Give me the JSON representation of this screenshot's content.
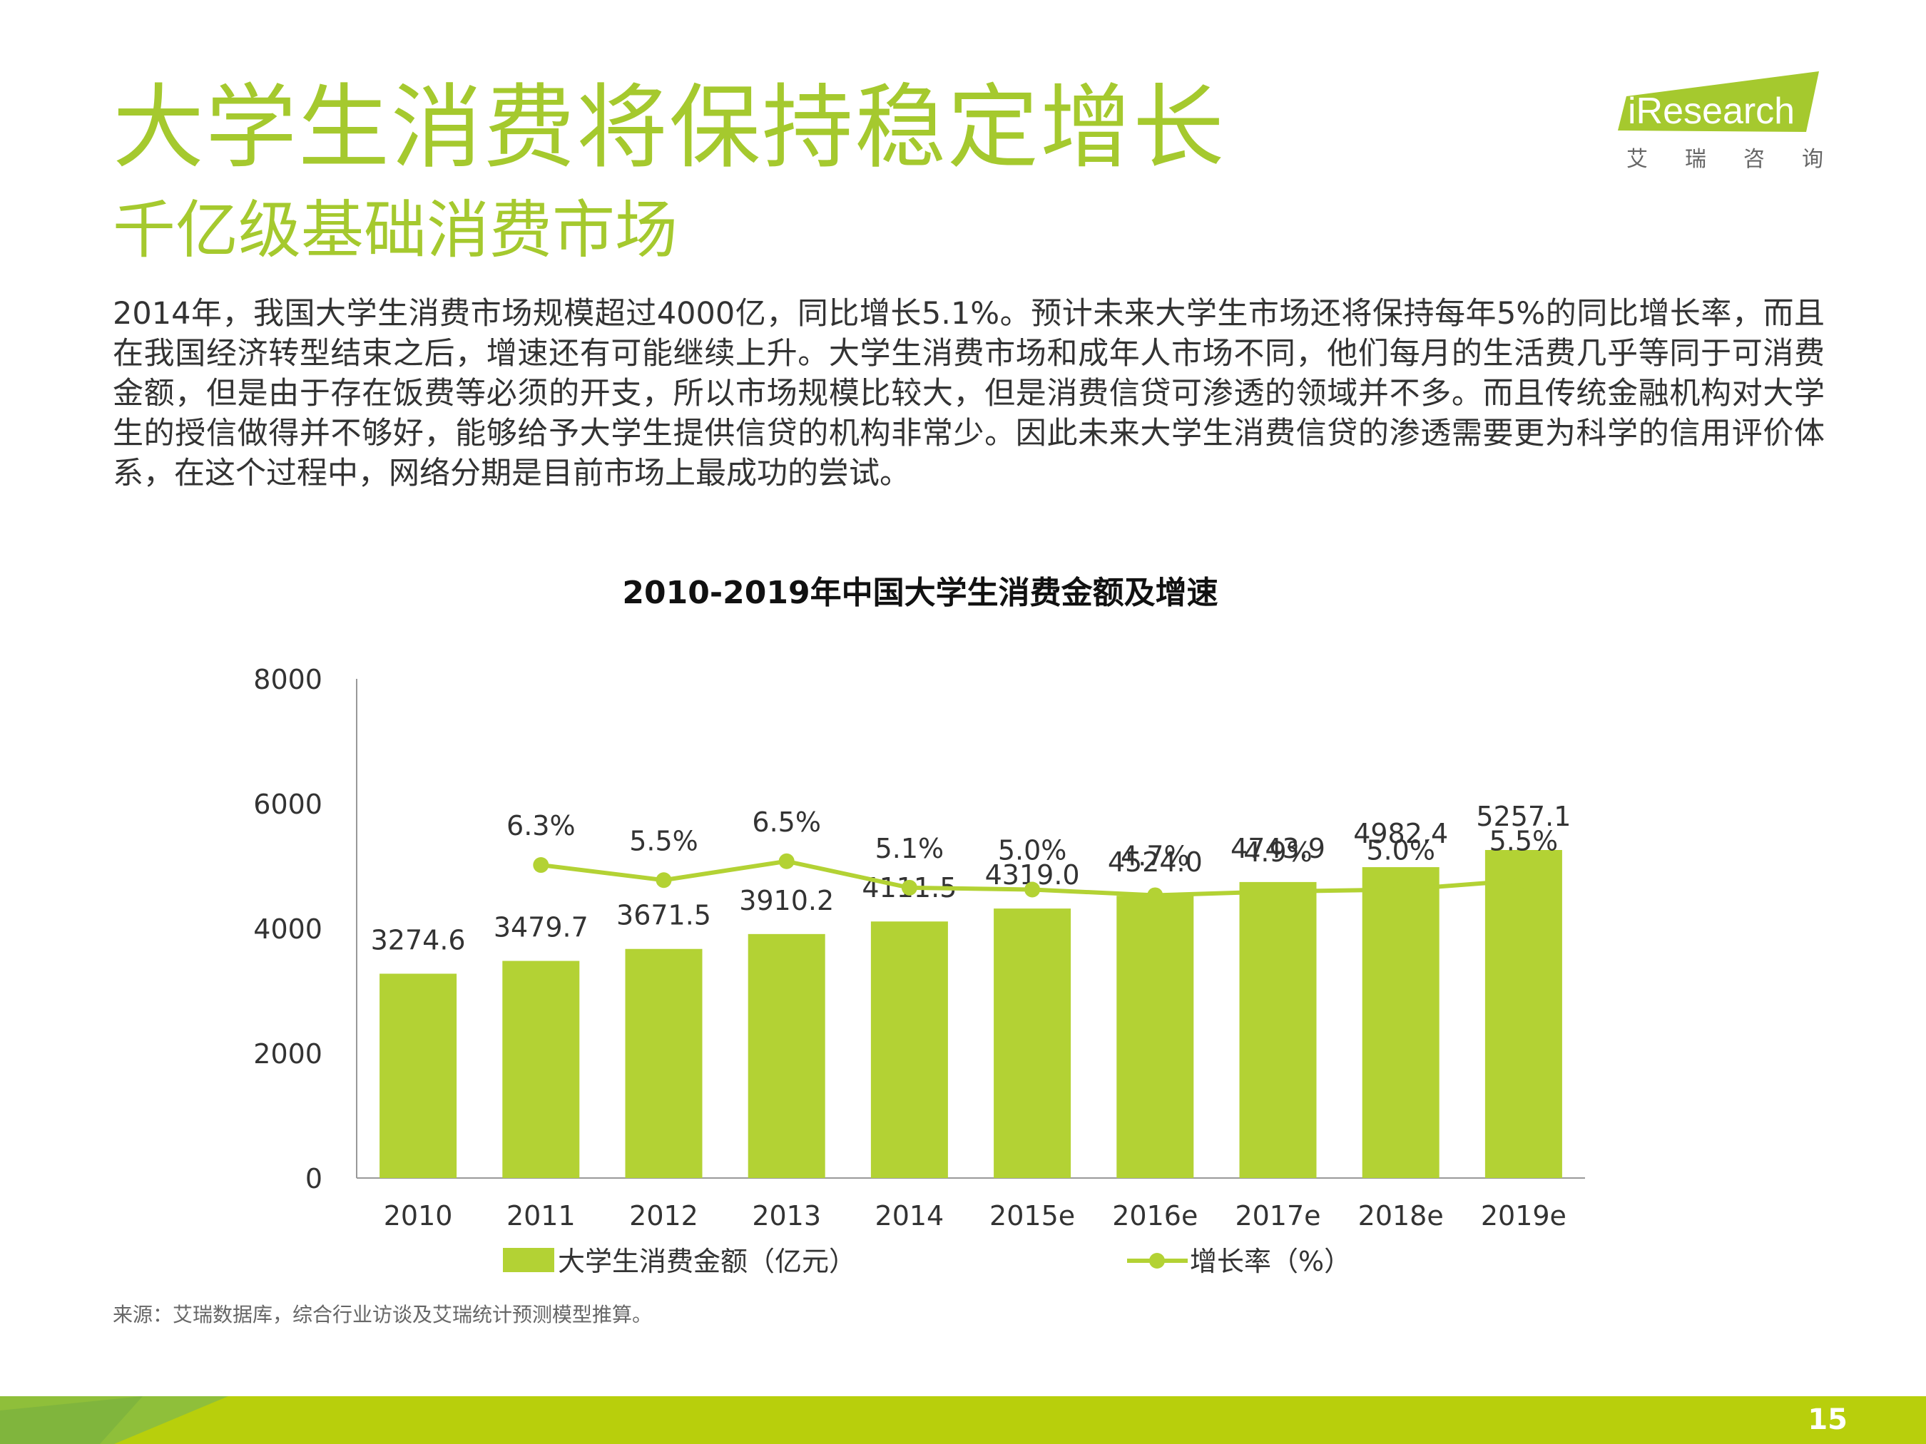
{
  "page": {
    "title": "大学生消费将保持稳定增长",
    "subtitle": "千亿级基础消费市场",
    "logo_text": "iResearch",
    "logo_tagline": "艾瑞咨询",
    "paragraph": "2014年，我国大学生消费市场规模超过4000亿，同比增长5.1%。预计未来大学生市场还将保持每年5%的同比增长率，而且在我国经济转型结束之后，增速还有可能继续上升。大学生消费市场和成年人市场不同，他们每月的生活费几乎等同于可消费金额，但是由于存在饭费等必须的开支，所以市场规模比较大，但是消费信贷可渗透的领域并不多。而且传统金融机构对大学生的授信做得并不够好，能够给予大学生提供信贷的机构非常少。因此未来大学生消费信贷的渗透需要更为科学的信用评价体系，在这个过程中，网络分期是目前市场上最成功的尝试。",
    "source": "来源：艾瑞数据库，综合行业访谈及艾瑞统计预测模型推算。",
    "page_number": "15"
  },
  "colors": {
    "accent": "#a5c92e",
    "bar": "#b3d234",
    "line": "#b3d234",
    "footer": "#b8cf0c"
  },
  "chart_data": {
    "type": "bar",
    "title": "2010-2019年中国大学生消费金额及增速",
    "categories": [
      "2010",
      "2011",
      "2012",
      "2013",
      "2014",
      "2015e",
      "2016e",
      "2017e",
      "2018e",
      "2019e"
    ],
    "ylim": [
      0,
      8000
    ],
    "yticks": [
      "0",
      "2000",
      "4000",
      "6000",
      "8000"
    ],
    "series": [
      {
        "name": "大学生消费金额（亿元）",
        "type": "bar",
        "values": [
          3274.6,
          3479.7,
          3671.5,
          3910.2,
          4111.5,
          4319.0,
          4524.0,
          4743.9,
          4982.4,
          5257.1
        ],
        "labels": [
          "3274.6",
          "3479.7",
          "3671.5",
          "3910.2",
          "4111.5",
          "4319.0",
          "4524.0",
          "4743.9",
          "4982.4",
          "5257.1"
        ]
      },
      {
        "name": "增长率（%）",
        "type": "line",
        "values": [
          null,
          6.3,
          5.5,
          6.5,
          5.1,
          5.0,
          4.7,
          4.9,
          5.0,
          5.5
        ],
        "labels": [
          "",
          "6.3%",
          "5.5%",
          "6.5%",
          "5.1%",
          "5.0%",
          "4.7%",
          "4.9%",
          "5.0%",
          "5.5%"
        ]
      }
    ],
    "legend_position": "bottom"
  }
}
